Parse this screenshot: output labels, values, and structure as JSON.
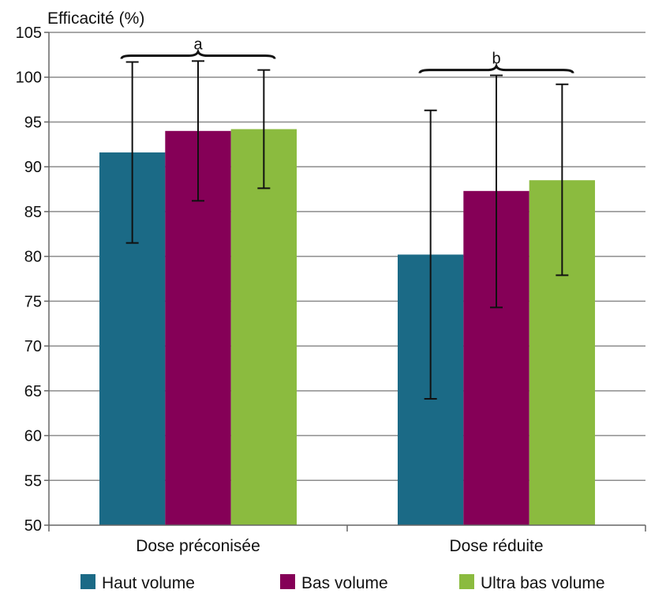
{
  "chart_data": {
    "type": "bar",
    "ylabel": "Efficacité (%)",
    "ylim": [
      50,
      105
    ],
    "ytick_step": 5,
    "yticks": [
      "50",
      "55",
      "60",
      "65",
      "70",
      "75",
      "80",
      "85",
      "90",
      "95",
      "100",
      "105"
    ],
    "grid": true,
    "categories": [
      "Dose préconisée",
      "Dose réduite"
    ],
    "series": [
      {
        "name": "Haut volume",
        "color": "#1b6a86",
        "values": [
          91.6,
          80.2
        ],
        "err_low": [
          81.5,
          64.1
        ],
        "err_high": [
          101.7,
          96.3
        ]
      },
      {
        "name": "Bas volume",
        "color": "#850057",
        "values": [
          94.0,
          87.3
        ],
        "err_low": [
          86.2,
          74.3
        ],
        "err_high": [
          101.8,
          100.2
        ]
      },
      {
        "name": "Ultra bas volume",
        "color": "#8bbb3f",
        "values": [
          94.2,
          88.5
        ],
        "err_low": [
          87.6,
          77.9
        ],
        "err_high": [
          100.8,
          99.2
        ]
      }
    ],
    "annotations": [
      "a",
      "b"
    ],
    "legend_position": "bottom"
  }
}
